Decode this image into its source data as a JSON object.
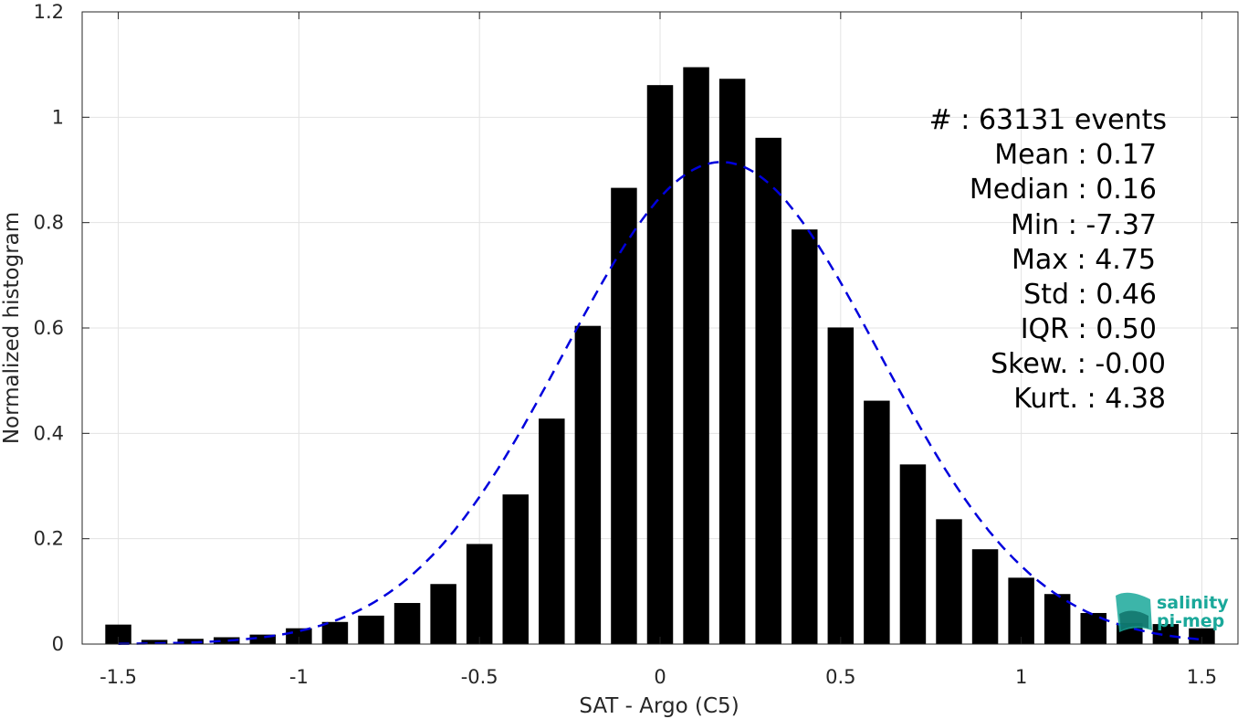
{
  "chart_data": {
    "type": "bar",
    "xlabel": "SAT - Argo (C5)",
    "ylabel": "Normalized histogram",
    "xlim": [
      -1.6,
      1.6
    ],
    "ylim": [
      0,
      1.2
    ],
    "xticks": [
      -1.5,
      -1,
      -0.5,
      0,
      0.5,
      1,
      1.5
    ],
    "xtick_labels": [
      "-1.5",
      "-1",
      "-0.5",
      "0",
      "0.5",
      "1",
      "1.5"
    ],
    "yticks": [
      0,
      0.2,
      0.4,
      0.6,
      0.8,
      1,
      1.2
    ],
    "ytick_labels": [
      "0",
      "0.2",
      "0.4",
      "0.6",
      "0.8",
      "1",
      "1.2"
    ],
    "grid": true,
    "bar_color": "#000000",
    "fit_color": "#0000dd",
    "bin_width": 0.1,
    "bars": {
      "x": [
        -1.5,
        -1.4,
        -1.3,
        -1.2,
        -1.1,
        -1.0,
        -0.9,
        -0.8,
        -0.7,
        -0.6,
        -0.5,
        -0.4,
        -0.3,
        -0.2,
        -0.1,
        0.0,
        0.1,
        0.2,
        0.3,
        0.4,
        0.5,
        0.6,
        0.7,
        0.8,
        0.9,
        1.0,
        1.1,
        1.2,
        1.3,
        1.4,
        1.5
      ],
      "values": [
        0.037,
        0.008,
        0.01,
        0.013,
        0.018,
        0.03,
        0.042,
        0.054,
        0.078,
        0.114,
        0.19,
        0.284,
        0.428,
        0.604,
        0.866,
        1.061,
        1.095,
        1.073,
        0.961,
        0.787,
        0.601,
        0.462,
        0.341,
        0.237,
        0.18,
        0.126,
        0.095,
        0.059,
        0.04,
        0.038,
        0.03
      ]
    },
    "fit": {
      "type": "normal",
      "mean": 0.17,
      "std": 0.435,
      "peak": 0.915
    },
    "stats": [
      {
        "label": "#  : 63131 events"
      },
      {
        "label": "Mean : 0.17"
      },
      {
        "label": "Median : 0.16"
      },
      {
        "label": "Min : -7.37"
      },
      {
        "label": "Max : 4.75"
      },
      {
        "label": "Std : 0.46"
      },
      {
        "label": "IQR : 0.50"
      },
      {
        "label": "Skew. : -0.00"
      },
      {
        "label": "Kurt. : 4.38"
      }
    ]
  },
  "logo": {
    "line1": "salinity",
    "line2": "pi-mep",
    "color": "#1aa89a"
  }
}
